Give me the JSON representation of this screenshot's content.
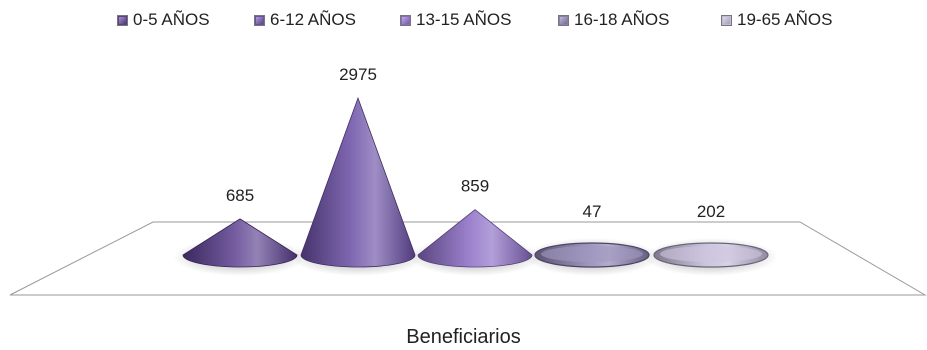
{
  "chart_data": {
    "type": "bar",
    "style": "3d-cone",
    "title": "",
    "xlabel": "Beneficiarios",
    "ylabel": "",
    "grid": false,
    "legend_position": "top",
    "categories": [
      "0-5 AÑOS",
      "6-12 AÑOS",
      "13-15 AÑOS",
      "16-18 AÑOS",
      "19-65 AÑOS"
    ],
    "values": [
      685,
      2975,
      859,
      47,
      202
    ],
    "series": [
      {
        "name": "0-5 AÑOS",
        "value": 685,
        "color": "#5b3f8f"
      },
      {
        "name": "6-12 AÑOS",
        "value": 2975,
        "color": "#6b4fa6"
      },
      {
        "name": "13-15 AÑOS",
        "value": 859,
        "color": "#8a6bc4"
      },
      {
        "name": "16-18 AÑOS",
        "value": 47,
        "color": "#8b7fb0"
      },
      {
        "name": "19-65 AÑOS",
        "value": 202,
        "color": "#c2b9d8"
      }
    ]
  }
}
